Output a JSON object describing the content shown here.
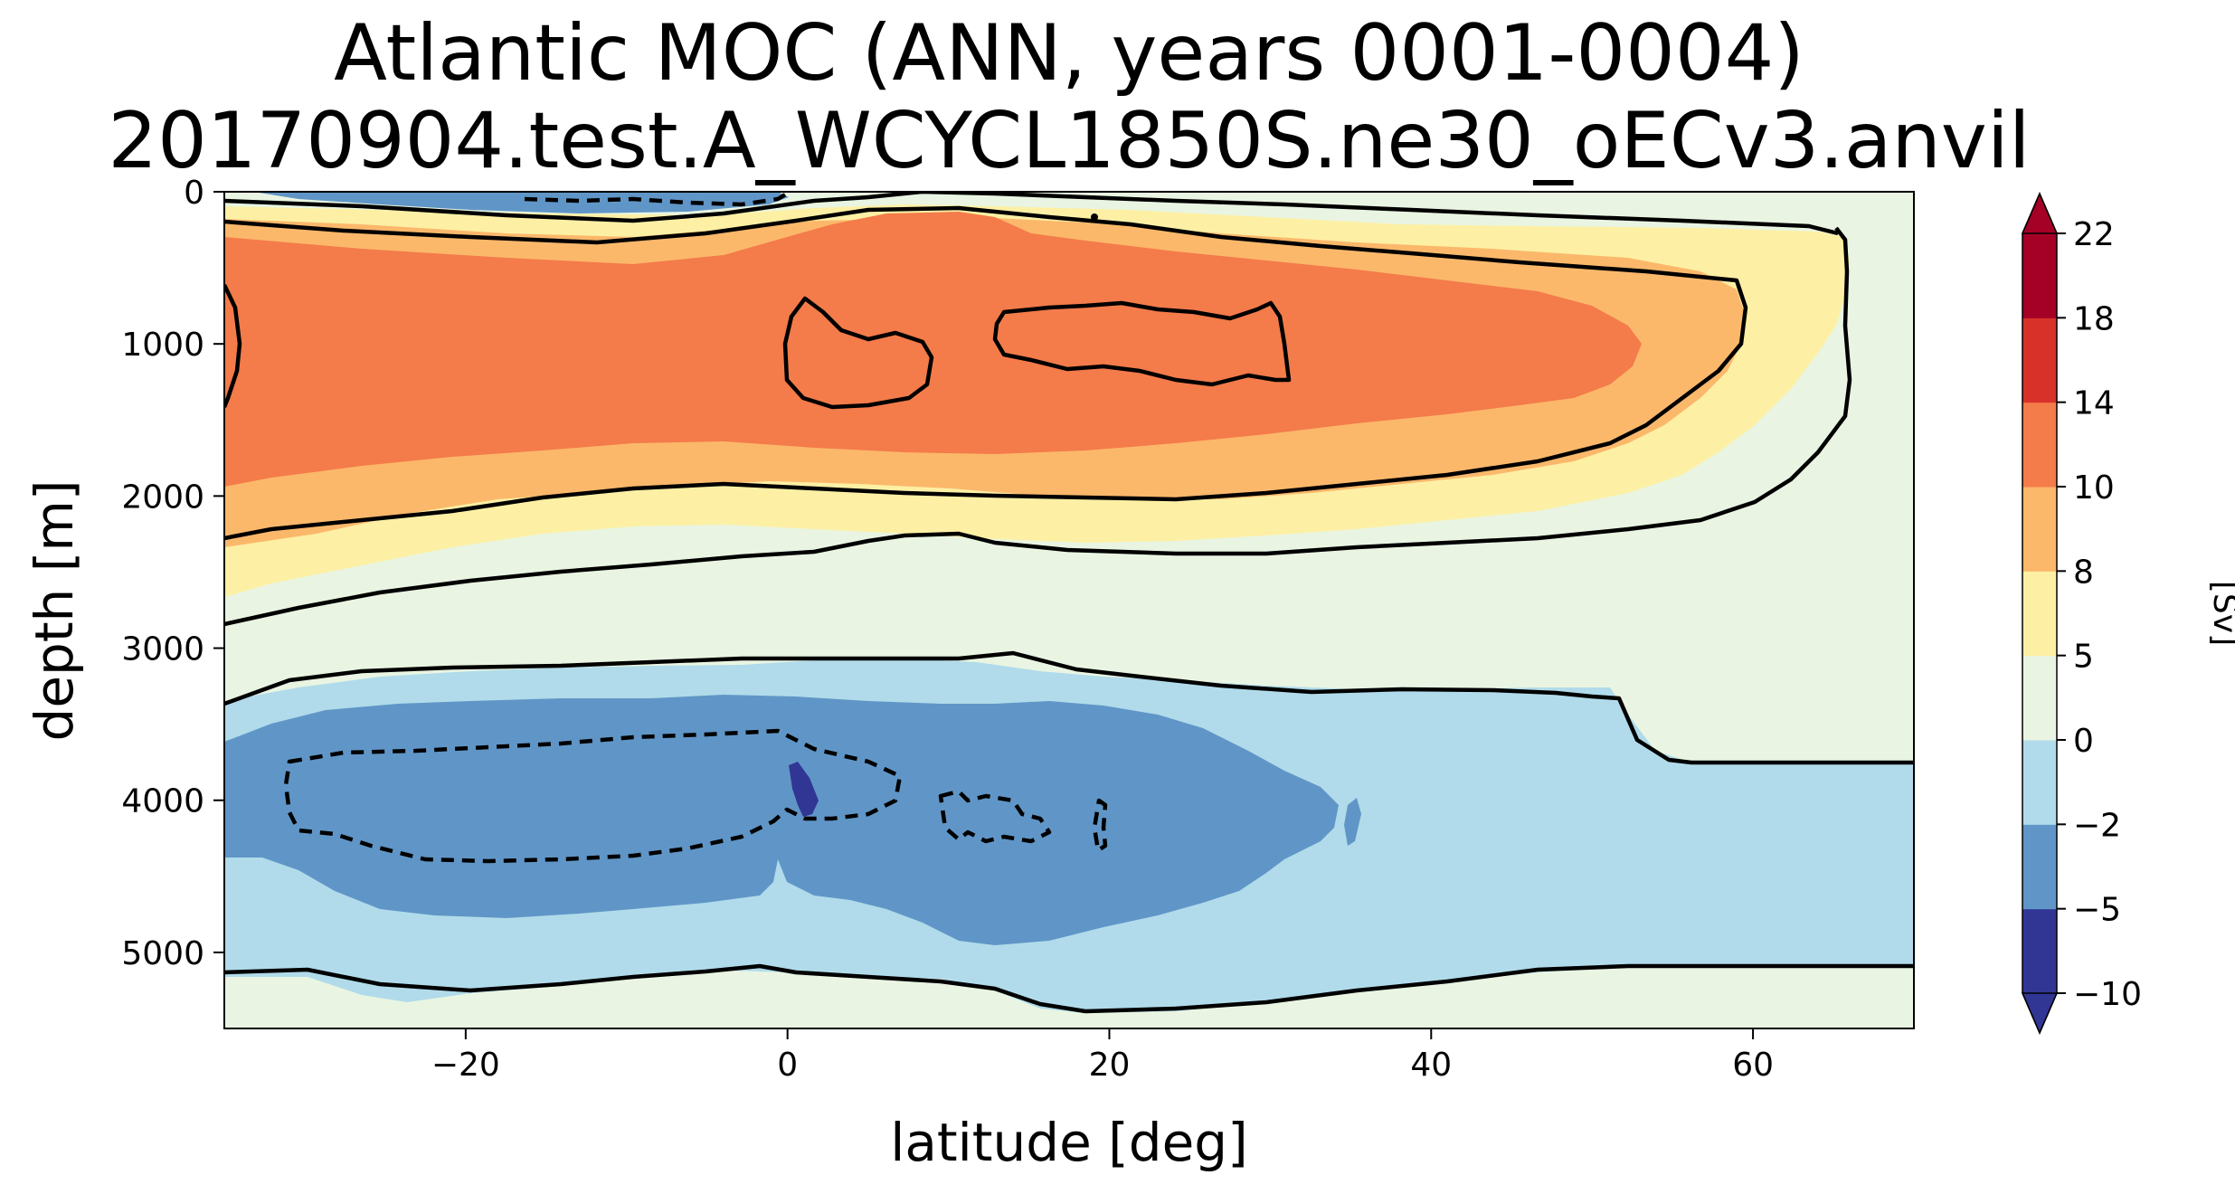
{
  "chart_data": {
    "type": "heatmap",
    "title_lines": [
      "Atlantic MOC (ANN, years 0001-0004)",
      "20170904.test.A_WCYCL1850S.ne30_oECv3.anvil"
    ],
    "xlabel": "latitude [deg]",
    "ylabel": "depth [m]",
    "xlim": [
      -35,
      70
    ],
    "ylim": [
      5500,
      0
    ],
    "y_inverted": true,
    "xticks": [
      -20,
      0,
      20,
      40,
      60
    ],
    "xtick_labels": [
      "−20",
      "0",
      "20",
      "40",
      "60"
    ],
    "yticks": [
      0,
      1000,
      2000,
      3000,
      4000,
      5000
    ],
    "ytick_labels": [
      "0",
      "1000",
      "2000",
      "3000",
      "4000",
      "5000"
    ],
    "colorbar": {
      "label": "[Sv]",
      "levels": [
        -10,
        -5,
        -2,
        0,
        5,
        8,
        10,
        14,
        18,
        22
      ],
      "tick_labels": [
        "−10",
        "−5",
        "−2",
        "0",
        "5",
        "8",
        "10",
        "14",
        "18",
        "22"
      ],
      "colors": [
        "#313695",
        "#6096c7",
        "#b1dbea",
        "#e9f5e2",
        "#fdf0a5",
        "#fbb86b",
        "#f47b4a",
        "#d7312a",
        "#a50026"
      ],
      "extend": "both",
      "under_color": "#313695",
      "over_color": "#a50026"
    },
    "regions": [
      {
        "level_band": "0 to 5",
        "description": "background",
        "color": "#e9f5e2"
      },
      {
        "level_band": "5 to 8",
        "color": "#fdf0a5",
        "lat": [
          -35,
          66
        ],
        "depth": [
          0,
          2750
        ]
      },
      {
        "level_band": "8 to 10",
        "color": "#fbb86b",
        "lat": [
          -35,
          64
        ],
        "depth": [
          50,
          2200
        ]
      },
      {
        "level_band": "10 to 14",
        "color": "#f47b4a",
        "lat": [
          -35,
          53
        ],
        "depth": [
          100,
          1900
        ]
      },
      {
        "level_band": "0 to -2",
        "color": "#b1dbea",
        "lat": [
          -35,
          70
        ],
        "depth": [
          3000,
          5450
        ]
      },
      {
        "level_band": "-2 to -5",
        "color": "#6096c7",
        "lat": [
          -35,
          36
        ],
        "depth": [
          3500,
          4850
        ]
      },
      {
        "level_band": "-5 to -10",
        "color": "#313695",
        "lat": [
          0.5,
          2
        ],
        "depth": [
          3700,
          4050
        ]
      },
      {
        "level_band": "-2 to -5",
        "color": "#6096c7",
        "lat": [
          -18,
          0
        ],
        "depth": [
          0,
          100
        ]
      }
    ],
    "contours": [
      {
        "level": 10,
        "style": "solid",
        "description": "closed contour near 1000 m, lat 0-9"
      },
      {
        "level": 10,
        "style": "solid",
        "description": "closed contour near 1000 m, lat 13-31"
      },
      {
        "level": -2,
        "style": "dashed",
        "description": "closed contour near 4000 m, lat -31 to 7"
      }
    ]
  }
}
